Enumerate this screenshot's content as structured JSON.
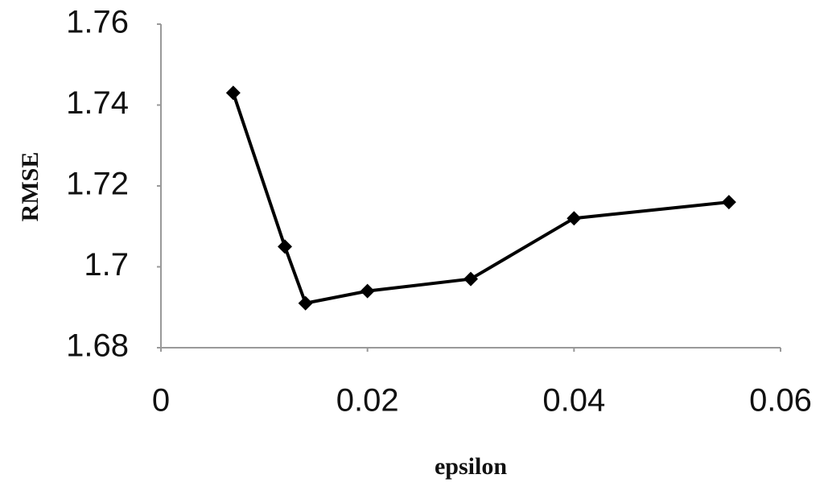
{
  "chart_data": {
    "type": "line",
    "x_label": "epsilon",
    "y_label": "RMSE",
    "x": [
      0.007,
      0.012,
      0.014,
      0.02,
      0.03,
      0.04,
      0.055
    ],
    "series": [
      {
        "color": "#000000",
        "values": [
          1.743,
          1.705,
          1.691,
          1.694,
          1.697,
          1.712,
          1.716
        ]
      }
    ],
    "xlim": [
      0,
      0.06
    ],
    "xticks": [
      0,
      0.02,
      0.04,
      0.06
    ],
    "ylim": [
      1.68,
      1.76
    ],
    "yticks": [
      1.68,
      1.7,
      1.72,
      1.74,
      1.76
    ],
    "grid": false
  }
}
